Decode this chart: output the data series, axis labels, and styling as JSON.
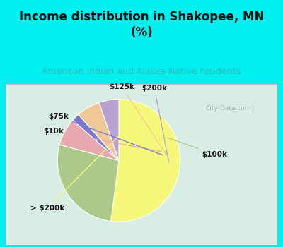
{
  "title": "Income distribution in Shakopee, MN\n(%)",
  "subtitle": "American Indian and Alaska Native residents",
  "title_color": "#111111",
  "subtitle_color": "#3ab8b8",
  "background_color": "#00f0f0",
  "chart_bg_gradient_top": "#c8ead8",
  "chart_bg_gradient_bottom": "#d0f0e8",
  "watermark": "City-Data.com",
  "slices": [
    {
      "label": "> $200k",
      "value": 50,
      "color": "#f5f87a"
    },
    {
      "label": "$100k",
      "value": 26,
      "color": "#adc98a"
    },
    {
      "label": "$10k",
      "value": 7,
      "color": "#e8a8b0"
    },
    {
      "label": "$75k",
      "value": 2,
      "color": "#7878cc"
    },
    {
      "label": "$125k",
      "value": 6,
      "color": "#f0c898"
    },
    {
      "label": "$200k",
      "value": 5,
      "color": "#b8a0d0"
    }
  ],
  "start_angle": 90,
  "title_fontsize": 12,
  "subtitle_fontsize": 9,
  "label_fontsize": 7.5
}
